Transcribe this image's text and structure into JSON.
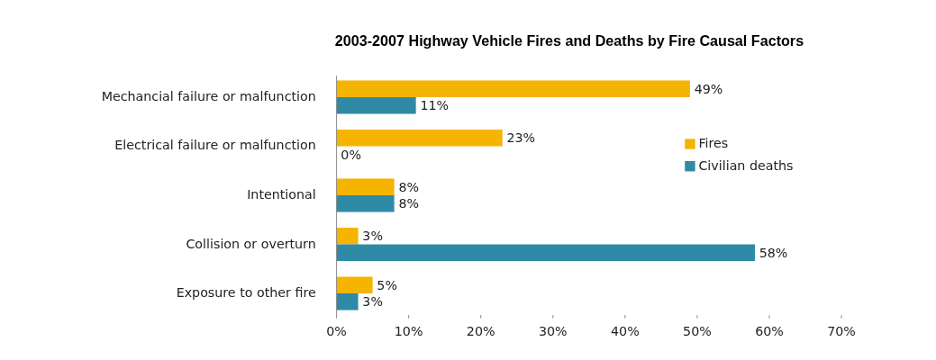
{
  "chart_data": {
    "type": "bar",
    "orientation": "horizontal",
    "title": "2003-2007  Highway Vehicle Fires and Deaths  by Fire Causal Factors",
    "categories": [
      "Mechancial failure or malfunction",
      "Electrical failure or malfunction",
      "Intentional",
      "Collision or overturn",
      "Exposure to other fire"
    ],
    "series": [
      {
        "name": "Fires",
        "color": "#f5b400",
        "values": [
          49,
          23,
          8,
          3,
          5
        ],
        "value_labels": [
          "49%",
          "23%",
          "8%",
          "3%",
          "5%"
        ]
      },
      {
        "name": "Civilian deaths",
        "color": "#2f8aa6",
        "values": [
          11,
          0,
          8,
          58,
          3
        ],
        "value_labels": [
          "11%",
          "0%",
          "8%",
          "58%",
          "3%"
        ]
      }
    ],
    "xlim": [
      0,
      70
    ],
    "xticks": [
      {
        "value": 0,
        "label": "0%"
      },
      {
        "value": 10,
        "label": "10%"
      },
      {
        "value": 20,
        "label": "20%"
      },
      {
        "value": 30,
        "label": "30%"
      },
      {
        "value": 40,
        "label": "40%"
      },
      {
        "value": 50,
        "label": "50%"
      },
      {
        "value": 60,
        "label": "60%"
      },
      {
        "value": 70,
        "label": "70%"
      }
    ],
    "grid": false,
    "legend": "right"
  }
}
